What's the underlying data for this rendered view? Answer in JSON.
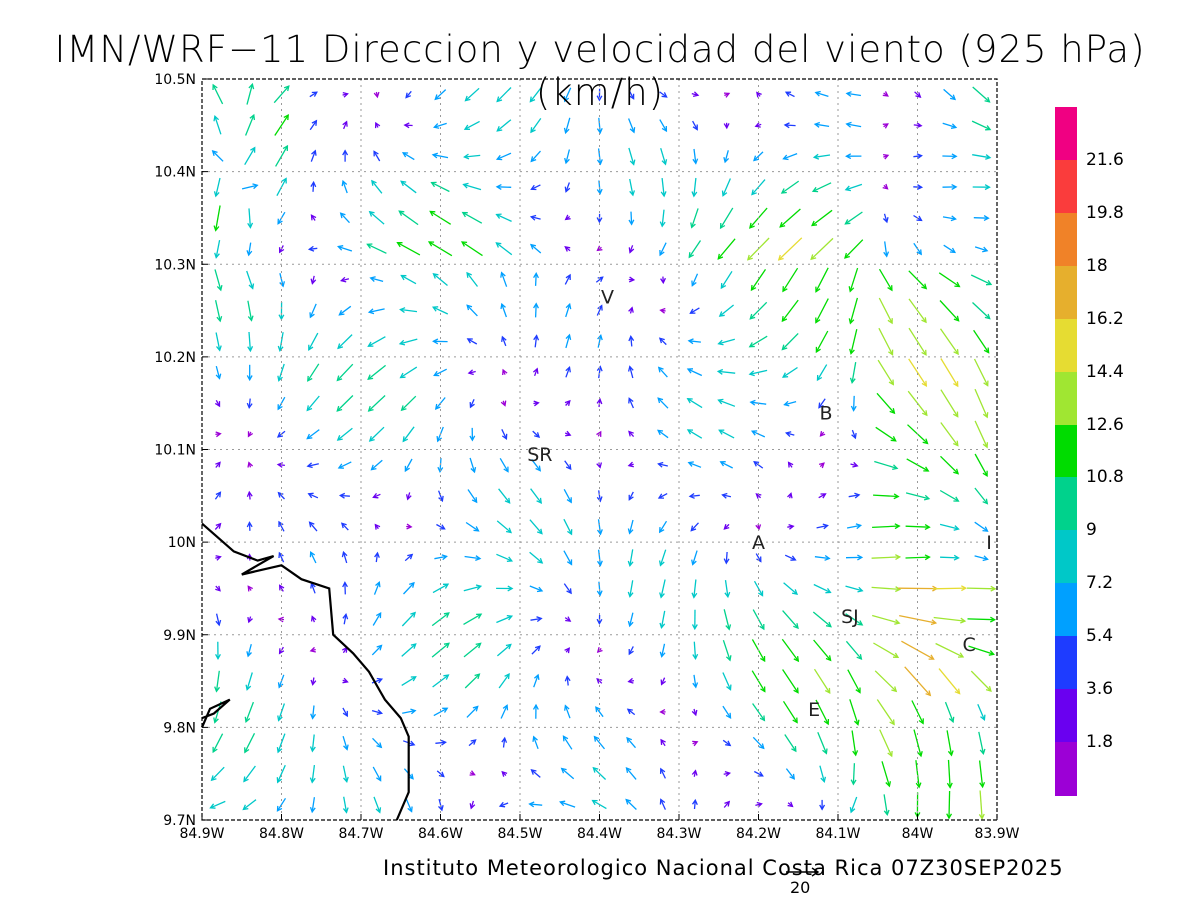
{
  "title": "IMN/WRF−11 Direccion y velocidad del viento (925 hPa)(km/h)",
  "credit": "Instituto Meteorologico Nacional Costa Rica 07Z30SEP2025",
  "reference_vector_label": "20",
  "map": {
    "lon_range": [
      -84.9,
      -83.9
    ],
    "lat_range": [
      9.7,
      10.5
    ],
    "x_ticks": [
      "84.9W",
      "84.8W",
      "84.7W",
      "84.6W",
      "84.5W",
      "84.4W",
      "84.3W",
      "84.2W",
      "84.1W",
      "84W",
      "83.9W"
    ],
    "y_ticks": [
      "9.7N",
      "9.8N",
      "9.9N",
      "10N",
      "10.1N",
      "10.2N",
      "10.3N",
      "10.4N",
      "10.5N"
    ],
    "grid": true,
    "coastline_lonlat": [
      [
        -84.9,
        10.02
      ],
      [
        -84.86,
        9.99
      ],
      [
        -84.83,
        9.98
      ],
      [
        -84.81,
        9.985
      ],
      [
        -84.85,
        9.965
      ],
      [
        -84.8,
        9.975
      ],
      [
        -84.775,
        9.96
      ],
      [
        -84.74,
        9.95
      ],
      [
        -84.735,
        9.9
      ],
      [
        -84.71,
        9.88
      ],
      [
        -84.69,
        9.86
      ],
      [
        -84.67,
        9.83
      ],
      [
        -84.65,
        9.81
      ],
      [
        -84.64,
        9.79
      ],
      [
        -84.64,
        9.73
      ],
      [
        -84.655,
        9.7
      ]
    ],
    "coastline_spike": [
      [
        -84.9,
        9.8
      ],
      [
        -84.89,
        9.82
      ],
      [
        -84.865,
        9.83
      ],
      [
        -84.885,
        9.815
      ],
      [
        -84.9,
        9.81
      ]
    ],
    "places": [
      {
        "label": "V",
        "lon": -84.39,
        "lat": 10.265
      },
      {
        "label": "B",
        "lon": -84.115,
        "lat": 10.14
      },
      {
        "label": "SR",
        "lon": -84.475,
        "lat": 10.095
      },
      {
        "label": "A",
        "lon": -84.2,
        "lat": 10.0
      },
      {
        "label": "I",
        "lon": -83.91,
        "lat": 10.0
      },
      {
        "label": "SJ",
        "lon": -84.085,
        "lat": 9.92
      },
      {
        "label": "C",
        "lon": -83.935,
        "lat": 9.89
      },
      {
        "label": "E",
        "lon": -84.13,
        "lat": 9.82
      }
    ]
  },
  "colorbar": {
    "levels": [
      "1.8",
      "3.6",
      "5.4",
      "7.2",
      "9",
      "10.8",
      "12.6",
      "14.4",
      "16.2",
      "18",
      "19.8",
      "21.6"
    ],
    "colors": [
      "#9c00d6",
      "#6a00f0",
      "#1e3cff",
      "#00a0ff",
      "#00c8c8",
      "#00d28c",
      "#00dc00",
      "#a0e632",
      "#e6dc32",
      "#e6af2d",
      "#f08228",
      "#fa3c3c",
      "#f00082"
    ]
  }
}
